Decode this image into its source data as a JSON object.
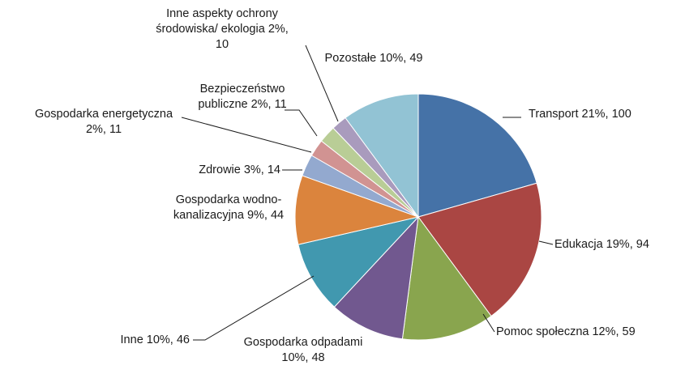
{
  "chart_data": {
    "type": "pie",
    "title": "",
    "start_angle_deg": 0,
    "direction": "clockwise",
    "slices": [
      {
        "name": "Transport",
        "percent_label": "21%",
        "value": 100,
        "color": "#4572a7",
        "label_lines": [
          "Transport 21%, 100"
        ]
      },
      {
        "name": "Edukacja",
        "percent_label": "19%",
        "value": 94,
        "color": "#aa4643",
        "label_lines": [
          "Edukacja 19%, 94"
        ]
      },
      {
        "name": "Pomoc społeczna",
        "percent_label": "12%",
        "value": 59,
        "color": "#89a54e",
        "label_lines": [
          "Pomoc społeczna 12%, 59"
        ]
      },
      {
        "name": "Gospodarka odpadami",
        "percent_label": "10%",
        "value": 48,
        "color": "#71588f",
        "label_lines": [
          "Gospodarka odpadami",
          "10%, 48"
        ]
      },
      {
        "name": "Inne",
        "percent_label": "10%",
        "value": 46,
        "color": "#4198af",
        "label_lines": [
          "Inne 10%, 46"
        ]
      },
      {
        "name": "Gospodarka wodno-kanalizacyjna",
        "percent_label": "9%",
        "value": 44,
        "color": "#db843d",
        "label_lines": [
          "Gospodarka wodno-",
          "kanalizacyjna 9%, 44"
        ]
      },
      {
        "name": "Zdrowie",
        "percent_label": "3%",
        "value": 14,
        "color": "#93a9cf",
        "label_lines": [
          "Zdrowie 3%, 14"
        ]
      },
      {
        "name": "Gospodarka energetyczna",
        "percent_label": "2%",
        "value": 11,
        "color": "#d19392",
        "label_lines": [
          "Gospodarka energetyczna",
          "2%, 11"
        ]
      },
      {
        "name": "Bezpieczeństwo publiczne",
        "percent_label": "2%",
        "value": 11,
        "color": "#b9cd96",
        "label_lines": [
          "Bezpieczeństwo",
          "publiczne 2%, 11"
        ]
      },
      {
        "name": "Inne aspekty ochrony środowiska/ ekologia",
        "percent_label": "2%",
        "value": 10,
        "color": "#a99bbd",
        "label_lines": [
          "Inne aspekty ochrony",
          "środowiska/ ekologia 2%,",
          "10"
        ]
      },
      {
        "name": "Pozostałe",
        "percent_label": "10%",
        "value": 49,
        "color": "#92c3d4",
        "label_lines": [
          "Pozostałe 10%, 49"
        ]
      }
    ]
  }
}
